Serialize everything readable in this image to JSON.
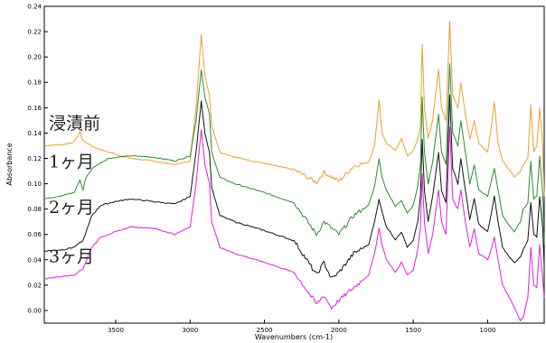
{
  "chart_data": {
    "type": "line",
    "title": "",
    "xlabel": "Wavenumbers (cm-1)",
    "ylabel": "Absorbance",
    "xlim": [
      3980,
      620
    ],
    "ylim": [
      -0.01,
      0.24
    ],
    "x_reversed": true,
    "grid": false,
    "x_ticks": [
      {
        "value": 3500,
        "label": "3500"
      },
      {
        "value": 3000,
        "label": "3000"
      },
      {
        "value": 2500,
        "label": "2500"
      },
      {
        "value": 2000,
        "label": "2000"
      },
      {
        "value": 1500,
        "label": "1500"
      },
      {
        "value": 1000,
        "label": "1000"
      }
    ],
    "y_ticks": [
      {
        "value": 0.0,
        "label": "0.00"
      },
      {
        "value": 0.02,
        "label": "0.02"
      },
      {
        "value": 0.04,
        "label": "0.04"
      },
      {
        "value": 0.06,
        "label": "0.06"
      },
      {
        "value": 0.08,
        "label": "0.08"
      },
      {
        "value": 0.1,
        "label": "0.10"
      },
      {
        "value": 0.12,
        "label": "0.12"
      },
      {
        "value": 0.14,
        "label": "0.14"
      },
      {
        "value": 0.16,
        "label": "0.16"
      },
      {
        "value": 0.18,
        "label": "0.18"
      },
      {
        "value": 0.2,
        "label": "0.20"
      },
      {
        "value": 0.22,
        "label": "0.22"
      },
      {
        "value": 0.24,
        "label": "0.24"
      }
    ],
    "series": [
      {
        "name": "浸漬前",
        "color": "#e8a030",
        "label_anchor": [
          3950,
          0.143
        ],
        "points": [
          [
            3980,
            0.13
          ],
          [
            3850,
            0.131
          ],
          [
            3780,
            0.133
          ],
          [
            3740,
            0.141
          ],
          [
            3720,
            0.134
          ],
          [
            3650,
            0.129
          ],
          [
            3550,
            0.125
          ],
          [
            3400,
            0.12
          ],
          [
            3250,
            0.118
          ],
          [
            3100,
            0.115
          ],
          [
            3000,
            0.118
          ],
          [
            2960,
            0.16
          ],
          [
            2925,
            0.218
          ],
          [
            2900,
            0.185
          ],
          [
            2870,
            0.17
          ],
          [
            2855,
            0.146
          ],
          [
            2800,
            0.125
          ],
          [
            2700,
            0.121
          ],
          [
            2500,
            0.116
          ],
          [
            2300,
            0.111
          ],
          [
            2150,
            0.101
          ],
          [
            2100,
            0.109
          ],
          [
            2000,
            0.102
          ],
          [
            1900,
            0.114
          ],
          [
            1800,
            0.117
          ],
          [
            1760,
            0.13
          ],
          [
            1730,
            0.166
          ],
          [
            1710,
            0.14
          ],
          [
            1680,
            0.132
          ],
          [
            1620,
            0.126
          ],
          [
            1580,
            0.136
          ],
          [
            1540,
            0.122
          ],
          [
            1500,
            0.126
          ],
          [
            1470,
            0.135
          ],
          [
            1452,
            0.145
          ],
          [
            1440,
            0.21
          ],
          [
            1425,
            0.16
          ],
          [
            1400,
            0.136
          ],
          [
            1370,
            0.15
          ],
          [
            1330,
            0.19
          ],
          [
            1310,
            0.16
          ],
          [
            1280,
            0.15
          ],
          [
            1255,
            0.228
          ],
          [
            1235,
            0.17
          ],
          [
            1200,
            0.16
          ],
          [
            1180,
            0.18
          ],
          [
            1150,
            0.155
          ],
          [
            1120,
            0.135
          ],
          [
            1090,
            0.15
          ],
          [
            1060,
            0.132
          ],
          [
            1000,
            0.125
          ],
          [
            970,
            0.15
          ],
          [
            955,
            0.165
          ],
          [
            930,
            0.132
          ],
          [
            900,
            0.118
          ],
          [
            860,
            0.112
          ],
          [
            820,
            0.105
          ],
          [
            780,
            0.11
          ],
          [
            760,
            0.115
          ],
          [
            730,
            0.12
          ],
          [
            710,
            0.162
          ],
          [
            690,
            0.125
          ],
          [
            670,
            0.13
          ],
          [
            650,
            0.16
          ],
          [
            630,
            0.13
          ],
          [
            620,
            0.09
          ]
        ]
      },
      {
        "name": "1ヶ月",
        "color": "#2e8b2e",
        "label_anchor": [
          3950,
          0.113
        ],
        "points": [
          [
            3980,
            0.088
          ],
          [
            3850,
            0.091
          ],
          [
            3780,
            0.093
          ],
          [
            3740,
            0.103
          ],
          [
            3720,
            0.095
          ],
          [
            3700,
            0.105
          ],
          [
            3650,
            0.113
          ],
          [
            3550,
            0.12
          ],
          [
            3400,
            0.122
          ],
          [
            3250,
            0.121
          ],
          [
            3100,
            0.118
          ],
          [
            3000,
            0.122
          ],
          [
            2960,
            0.15
          ],
          [
            2925,
            0.19
          ],
          [
            2900,
            0.168
          ],
          [
            2870,
            0.155
          ],
          [
            2855,
            0.125
          ],
          [
            2800,
            0.105
          ],
          [
            2700,
            0.1
          ],
          [
            2500,
            0.093
          ],
          [
            2300,
            0.085
          ],
          [
            2150,
            0.06
          ],
          [
            2100,
            0.07
          ],
          [
            2000,
            0.06
          ],
          [
            1900,
            0.075
          ],
          [
            1800,
            0.083
          ],
          [
            1760,
            0.098
          ],
          [
            1730,
            0.12
          ],
          [
            1710,
            0.105
          ],
          [
            1680,
            0.095
          ],
          [
            1620,
            0.082
          ],
          [
            1580,
            0.087
          ],
          [
            1540,
            0.077
          ],
          [
            1500,
            0.083
          ],
          [
            1470,
            0.098
          ],
          [
            1452,
            0.115
          ],
          [
            1440,
            0.168
          ],
          [
            1425,
            0.125
          ],
          [
            1400,
            0.1
          ],
          [
            1370,
            0.117
          ],
          [
            1330,
            0.155
          ],
          [
            1310,
            0.125
          ],
          [
            1280,
            0.115
          ],
          [
            1255,
            0.195
          ],
          [
            1235,
            0.14
          ],
          [
            1200,
            0.13
          ],
          [
            1180,
            0.15
          ],
          [
            1150,
            0.125
          ],
          [
            1120,
            0.1
          ],
          [
            1090,
            0.115
          ],
          [
            1060,
            0.095
          ],
          [
            1000,
            0.09
          ],
          [
            970,
            0.105
          ],
          [
            955,
            0.112
          ],
          [
            930,
            0.095
          ],
          [
            900,
            0.075
          ],
          [
            860,
            0.068
          ],
          [
            820,
            0.062
          ],
          [
            780,
            0.07
          ],
          [
            760,
            0.08
          ],
          [
            730,
            0.085
          ],
          [
            710,
            0.118
          ],
          [
            690,
            0.088
          ],
          [
            670,
            0.09
          ],
          [
            650,
            0.122
          ],
          [
            630,
            0.092
          ],
          [
            620,
            0.052
          ]
        ]
      },
      {
        "name": "2ヶ月",
        "color": "#111111",
        "label_anchor": [
          3950,
          0.077
        ],
        "points": [
          [
            3980,
            0.047
          ],
          [
            3850,
            0.048
          ],
          [
            3780,
            0.05
          ],
          [
            3720,
            0.055
          ],
          [
            3660,
            0.075
          ],
          [
            3600,
            0.083
          ],
          [
            3500,
            0.086
          ],
          [
            3400,
            0.088
          ],
          [
            3250,
            0.086
          ],
          [
            3100,
            0.084
          ],
          [
            3000,
            0.09
          ],
          [
            2960,
            0.125
          ],
          [
            2925,
            0.165
          ],
          [
            2900,
            0.14
          ],
          [
            2870,
            0.125
          ],
          [
            2855,
            0.097
          ],
          [
            2800,
            0.075
          ],
          [
            2700,
            0.07
          ],
          [
            2500,
            0.063
          ],
          [
            2300,
            0.055
          ],
          [
            2150,
            0.028
          ],
          [
            2100,
            0.038
          ],
          [
            2050,
            0.025
          ],
          [
            2000,
            0.03
          ],
          [
            1900,
            0.045
          ],
          [
            1800,
            0.052
          ],
          [
            1760,
            0.07
          ],
          [
            1730,
            0.088
          ],
          [
            1710,
            0.078
          ],
          [
            1680,
            0.066
          ],
          [
            1620,
            0.056
          ],
          [
            1580,
            0.062
          ],
          [
            1540,
            0.05
          ],
          [
            1500,
            0.055
          ],
          [
            1470,
            0.07
          ],
          [
            1452,
            0.09
          ],
          [
            1440,
            0.135
          ],
          [
            1425,
            0.095
          ],
          [
            1400,
            0.07
          ],
          [
            1370,
            0.09
          ],
          [
            1330,
            0.125
          ],
          [
            1310,
            0.095
          ],
          [
            1280,
            0.085
          ],
          [
            1255,
            0.17
          ],
          [
            1235,
            0.112
          ],
          [
            1200,
            0.1
          ],
          [
            1180,
            0.12
          ],
          [
            1150,
            0.095
          ],
          [
            1120,
            0.072
          ],
          [
            1090,
            0.088
          ],
          [
            1060,
            0.068
          ],
          [
            1000,
            0.062
          ],
          [
            970,
            0.08
          ],
          [
            955,
            0.09
          ],
          [
            930,
            0.07
          ],
          [
            900,
            0.05
          ],
          [
            860,
            0.043
          ],
          [
            820,
            0.038
          ],
          [
            780,
            0.042
          ],
          [
            760,
            0.048
          ],
          [
            730,
            0.055
          ],
          [
            710,
            0.085
          ],
          [
            690,
            0.06
          ],
          [
            670,
            0.058
          ],
          [
            650,
            0.09
          ],
          [
            630,
            0.065
          ],
          [
            620,
            0.035
          ]
        ]
      },
      {
        "name": "3ヶ月",
        "color": "#e020e0",
        "label_anchor": [
          3950,
          0.038
        ],
        "points": [
          [
            3980,
            0.025
          ],
          [
            3850,
            0.027
          ],
          [
            3780,
            0.028
          ],
          [
            3720,
            0.033
          ],
          [
            3660,
            0.05
          ],
          [
            3600,
            0.058
          ],
          [
            3500,
            0.062
          ],
          [
            3400,
            0.066
          ],
          [
            3250,
            0.065
          ],
          [
            3100,
            0.06
          ],
          [
            3000,
            0.066
          ],
          [
            2960,
            0.1
          ],
          [
            2925,
            0.143
          ],
          [
            2900,
            0.115
          ],
          [
            2870,
            0.1
          ],
          [
            2855,
            0.07
          ],
          [
            2800,
            0.05
          ],
          [
            2700,
            0.045
          ],
          [
            2500,
            0.038
          ],
          [
            2300,
            0.03
          ],
          [
            2150,
            0.005
          ],
          [
            2100,
            0.012
          ],
          [
            2050,
            0.002
          ],
          [
            2000,
            0.008
          ],
          [
            1900,
            0.018
          ],
          [
            1800,
            0.028
          ],
          [
            1760,
            0.045
          ],
          [
            1730,
            0.065
          ],
          [
            1710,
            0.052
          ],
          [
            1680,
            0.04
          ],
          [
            1620,
            0.03
          ],
          [
            1580,
            0.038
          ],
          [
            1540,
            0.028
          ],
          [
            1500,
            0.032
          ],
          [
            1470,
            0.048
          ],
          [
            1452,
            0.065
          ],
          [
            1440,
            0.108
          ],
          [
            1425,
            0.07
          ],
          [
            1400,
            0.045
          ],
          [
            1370,
            0.06
          ],
          [
            1330,
            0.095
          ],
          [
            1310,
            0.07
          ],
          [
            1280,
            0.06
          ],
          [
            1255,
            0.145
          ],
          [
            1235,
            0.088
          ],
          [
            1200,
            0.08
          ],
          [
            1180,
            0.095
          ],
          [
            1150,
            0.07
          ],
          [
            1120,
            0.05
          ],
          [
            1090,
            0.064
          ],
          [
            1060,
            0.045
          ],
          [
            1000,
            0.04
          ],
          [
            970,
            0.05
          ],
          [
            955,
            0.058
          ],
          [
            930,
            0.04
          ],
          [
            900,
            0.02
          ],
          [
            860,
            0.012
          ],
          [
            820,
            0.002
          ],
          [
            780,
            -0.008
          ],
          [
            760,
            -0.005
          ],
          [
            730,
            0.01
          ],
          [
            710,
            0.05
          ],
          [
            690,
            0.02
          ],
          [
            670,
            0.018
          ],
          [
            650,
            0.052
          ],
          [
            630,
            0.025
          ],
          [
            620,
            0.01
          ]
        ]
      }
    ]
  }
}
